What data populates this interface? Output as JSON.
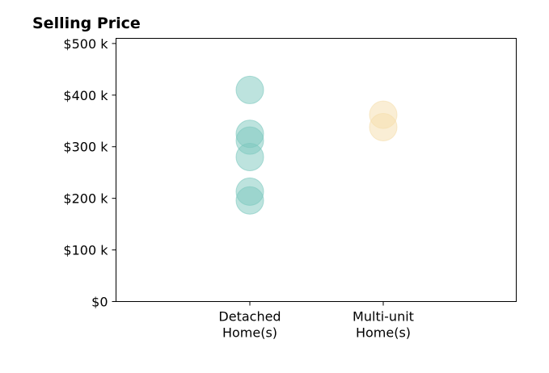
{
  "chart_data": {
    "type": "scatter",
    "title": "Selling Price",
    "xlabel": "",
    "ylabel": "",
    "categories": [
      [
        "Detached",
        "Home(s)"
      ],
      [
        "Multi-unit",
        "Home(s)"
      ]
    ],
    "ylim": [
      0,
      510000
    ],
    "yticks": [
      0,
      100000,
      200000,
      300000,
      400000,
      500000
    ],
    "ytick_labels": [
      "$0",
      "$100 k",
      "$200 k",
      "$300 k",
      "$400 k",
      "$500 k"
    ],
    "grid": false,
    "legend": "none",
    "series": [
      {
        "category_index": 0,
        "color": "#7cc8be",
        "values": [
          410000,
          325000,
          312000,
          280000,
          213000,
          196000
        ]
      },
      {
        "category_index": 1,
        "color": "#f5deab",
        "values": [
          362000,
          338000
        ]
      }
    ]
  }
}
